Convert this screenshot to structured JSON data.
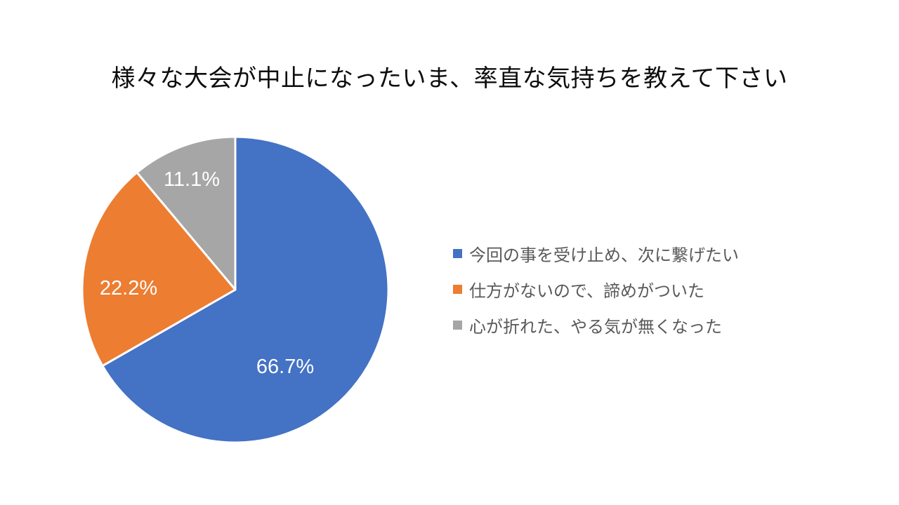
{
  "title": "様々な大会が中止になったいま、率直な気持ちを教えて下さい",
  "chart_data": {
    "type": "pie",
    "title": "様々な大会が中止になったいま、率直な気持ちを教えて下さい",
    "categories": [
      "今回の事を受け止め、次に繋げたい",
      "仕方がないので、諦めがついた",
      "心が折れた、やる気が無くなった"
    ],
    "values": [
      66.7,
      22.2,
      11.1
    ],
    "value_labels": [
      "66.7%",
      "22.2%",
      "11.1%"
    ],
    "colors": [
      "#4472C4",
      "#ED7D31",
      "#A6A6A6"
    ],
    "start_angle_deg": 0,
    "direction": "clockwise",
    "legend_position": "right",
    "slice_label_color": "#FFFFFF",
    "legend_text_color": "#595959",
    "slice_border_color": "#FFFFFF"
  }
}
